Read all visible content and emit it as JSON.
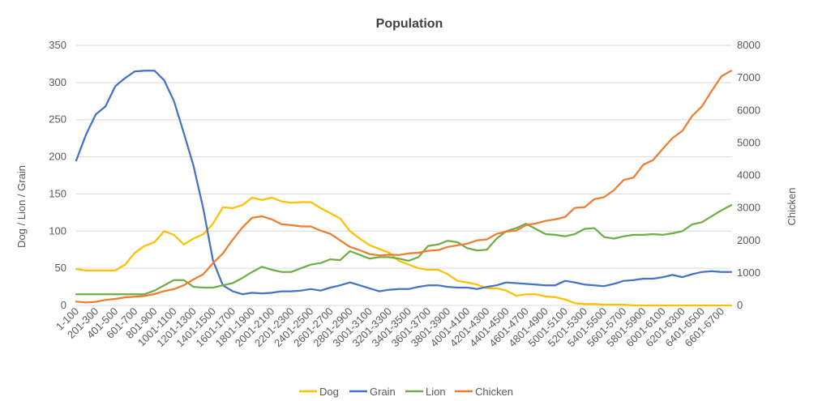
{
  "chart_data": {
    "type": "line",
    "title": "Population",
    "xlabel": "",
    "ylabel": "Dog / Lion / Grain",
    "y2label": "Chicken",
    "ylim": [
      0,
      350
    ],
    "y2lim": [
      0,
      8000
    ],
    "yticks": [
      0,
      50,
      100,
      150,
      200,
      250,
      300,
      350
    ],
    "y2ticks": [
      0,
      1000,
      2000,
      3000,
      4000,
      5000,
      6000,
      7000,
      8000
    ],
    "grid": true,
    "legend_position": "bottom",
    "x_labels": [
      "1-100",
      "201-300",
      "401-500",
      "601-700",
      "801-900",
      "1001-1100",
      "1201-1300",
      "1401-1500",
      "1601-1700",
      "1801-1900",
      "2001-2100",
      "2201-2300",
      "2401-2500",
      "2601-2700",
      "2801-2900",
      "3001-3100",
      "3201-3300",
      "3401-3500",
      "3601-3700",
      "3801-3900",
      "4001-4100",
      "4201-4300",
      "4401-4500",
      "4601-4700",
      "4801-4900",
      "5001-5100",
      "5201-5300",
      "5401-5500",
      "5601-5700",
      "5801-5900",
      "6001-6100",
      "6201-6300",
      "6401-6500",
      "6601-6700"
    ],
    "series": [
      {
        "name": "Dog",
        "axis": "left",
        "color": "#FFC000",
        "values": [
          49,
          47,
          47,
          47,
          47,
          55,
          71,
          80,
          85,
          100,
          95,
          82,
          90,
          96,
          110,
          132,
          131,
          135,
          145,
          142,
          145,
          140,
          138,
          139,
          139,
          131,
          124,
          117,
          100,
          90,
          81,
          76,
          71,
          60,
          55,
          50,
          48,
          48,
          42,
          33,
          31,
          28,
          23,
          23,
          20,
          13,
          15,
          15,
          12,
          11,
          8,
          3,
          2,
          2,
          1,
          1,
          1,
          0,
          0,
          0,
          0,
          0,
          0,
          0,
          0,
          0,
          0,
          0
        ]
      },
      {
        "name": "Grain",
        "axis": "left",
        "color": "#4472C4",
        "values": [
          195,
          230,
          257,
          268,
          295,
          306,
          315,
          316,
          316,
          303,
          275,
          232,
          188,
          130,
          60,
          27,
          19,
          15,
          17,
          16,
          17,
          19,
          19,
          20,
          22,
          20,
          24,
          27,
          31,
          27,
          23,
          19,
          21,
          22,
          22,
          25,
          27,
          27,
          25,
          24,
          24,
          22,
          25,
          27,
          31,
          30,
          29,
          28,
          27,
          27,
          33,
          31,
          28,
          27,
          26,
          29,
          33,
          34,
          36,
          36,
          38,
          41,
          38,
          42,
          45,
          46,
          45,
          45
        ]
      },
      {
        "name": "Lion",
        "axis": "left",
        "color": "#70AD47",
        "values": [
          15,
          15,
          15,
          15,
          15,
          15,
          15,
          15,
          20,
          27,
          34,
          34,
          25,
          24,
          24,
          27,
          30,
          37,
          45,
          52,
          48,
          45,
          45,
          50,
          55,
          57,
          62,
          61,
          73,
          68,
          63,
          65,
          65,
          63,
          60,
          65,
          80,
          82,
          87,
          85,
          77,
          74,
          75,
          90,
          100,
          104,
          110,
          103,
          96,
          95,
          93,
          96,
          103,
          104,
          92,
          90,
          93,
          95,
          95,
          96,
          95,
          97,
          100,
          109,
          112,
          120,
          128,
          135
        ]
      },
      {
        "name": "Chicken",
        "axis": "right",
        "color": "#ED7D31",
        "values": [
          120,
          90,
          110,
          170,
          200,
          250,
          270,
          290,
          350,
          440,
          500,
          620,
          800,
          960,
          1300,
          1600,
          2020,
          2400,
          2700,
          2740,
          2650,
          2500,
          2470,
          2430,
          2430,
          2300,
          2200,
          2000,
          1800,
          1700,
          1580,
          1540,
          1560,
          1550,
          1600,
          1620,
          1680,
          1700,
          1800,
          1850,
          1900,
          2000,
          2030,
          2200,
          2270,
          2300,
          2470,
          2520,
          2600,
          2650,
          2720,
          3000,
          3020,
          3270,
          3330,
          3550,
          3860,
          3930,
          4330,
          4470,
          4820,
          5150,
          5370,
          5830,
          6120,
          6600,
          7050,
          7220
        ]
      }
    ]
  }
}
